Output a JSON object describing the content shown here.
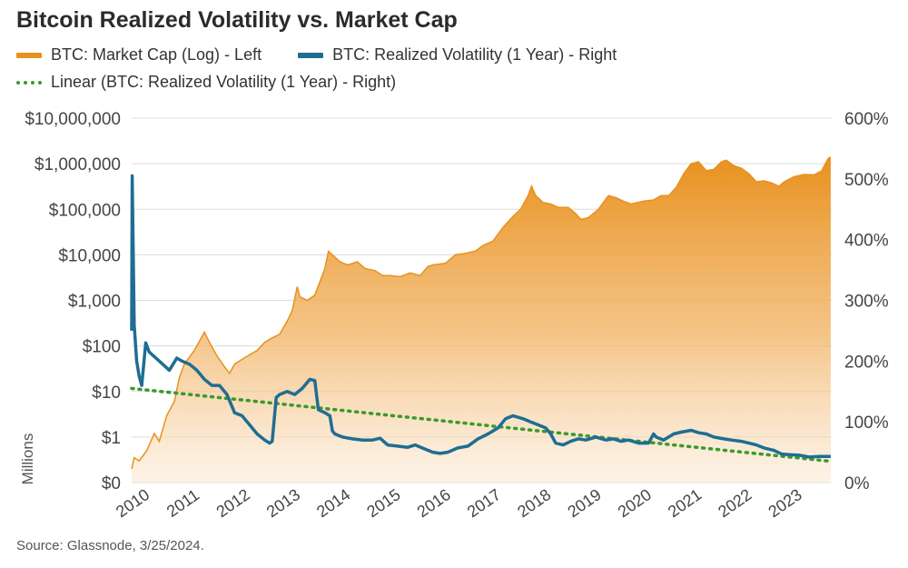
{
  "chart_data": {
    "type": "line",
    "title": "Bitcoin Realized Volatility vs. Market Cap",
    "ylabel_left": "Millions",
    "colors": {
      "market_cap": "#e8911e",
      "volatility": "#1f6d93",
      "trend": "#3a9a2a"
    },
    "y_left": {
      "scale": "log",
      "range": [
        0.1,
        10000000
      ],
      "tick_values": [
        0.1,
        1,
        10,
        100,
        1000,
        10000,
        100000,
        1000000,
        10000000
      ],
      "tick_labels": [
        "$0",
        "$1",
        "$10",
        "$100",
        "$1,000",
        "$10,000",
        "$100,000",
        "$1,000,000",
        "$10,000,000"
      ]
    },
    "y_right": {
      "scale": "linear",
      "range": [
        0,
        600
      ],
      "tick_values": [
        0,
        100,
        200,
        300,
        400,
        500,
        600
      ],
      "tick_labels": [
        "0%",
        "100%",
        "200%",
        "300%",
        "400%",
        "500%",
        "600%"
      ]
    },
    "x_axis": {
      "range": [
        2010.0,
        2023.95
      ],
      "tick_values": [
        2010,
        2011,
        2012,
        2013,
        2014,
        2015,
        2016,
        2017,
        2018,
        2019,
        2020,
        2021,
        2022,
        2023
      ],
      "tick_labels": [
        "2010",
        "2011",
        "2012",
        "2013",
        "2014",
        "2015",
        "2016",
        "2017",
        "2018",
        "2019",
        "2020",
        "2021",
        "2022",
        "2023"
      ]
    },
    "grid": true,
    "series": [
      {
        "name": "BTC: Market Cap (Log) - Left",
        "axis": "left",
        "style": "area",
        "points": [
          [
            2010.0,
            0.2
          ],
          [
            2010.05,
            0.35
          ],
          [
            2010.15,
            0.3
          ],
          [
            2010.3,
            0.5
          ],
          [
            2010.45,
            1.2
          ],
          [
            2010.55,
            0.8
          ],
          [
            2010.7,
            3
          ],
          [
            2010.85,
            6
          ],
          [
            2010.95,
            20
          ],
          [
            2011.05,
            40
          ],
          [
            2011.25,
            80
          ],
          [
            2011.45,
            200
          ],
          [
            2011.55,
            120
          ],
          [
            2011.7,
            60
          ],
          [
            2011.85,
            35
          ],
          [
            2011.95,
            25
          ],
          [
            2012.05,
            40
          ],
          [
            2012.25,
            55
          ],
          [
            2012.5,
            80
          ],
          [
            2012.65,
            120
          ],
          [
            2012.8,
            150
          ],
          [
            2012.95,
            180
          ],
          [
            2013.1,
            350
          ],
          [
            2013.2,
            600
          ],
          [
            2013.3,
            2000
          ],
          [
            2013.35,
            1200
          ],
          [
            2013.5,
            1000
          ],
          [
            2013.65,
            1300
          ],
          [
            2013.85,
            5000
          ],
          [
            2013.92,
            12000
          ],
          [
            2014.0,
            10000
          ],
          [
            2014.15,
            7000
          ],
          [
            2014.3,
            6000
          ],
          [
            2014.5,
            7000
          ],
          [
            2014.65,
            5000
          ],
          [
            2014.85,
            4500
          ],
          [
            2015.0,
            3500
          ],
          [
            2015.15,
            3500
          ],
          [
            2015.35,
            3300
          ],
          [
            2015.55,
            4000
          ],
          [
            2015.75,
            3500
          ],
          [
            2015.9,
            5500
          ],
          [
            2016.0,
            6000
          ],
          [
            2016.25,
            6500
          ],
          [
            2016.45,
            10000
          ],
          [
            2016.6,
            10500
          ],
          [
            2016.85,
            12000
          ],
          [
            2017.0,
            16000
          ],
          [
            2017.2,
            20000
          ],
          [
            2017.4,
            40000
          ],
          [
            2017.6,
            70000
          ],
          [
            2017.75,
            100000
          ],
          [
            2017.9,
            200000
          ],
          [
            2017.97,
            320000
          ],
          [
            2018.05,
            200000
          ],
          [
            2018.2,
            140000
          ],
          [
            2018.35,
            130000
          ],
          [
            2018.5,
            110000
          ],
          [
            2018.7,
            110000
          ],
          [
            2018.85,
            80000
          ],
          [
            2018.95,
            60000
          ],
          [
            2019.1,
            65000
          ],
          [
            2019.3,
            100000
          ],
          [
            2019.5,
            200000
          ],
          [
            2019.65,
            180000
          ],
          [
            2019.8,
            150000
          ],
          [
            2019.95,
            130000
          ],
          [
            2020.2,
            150000
          ],
          [
            2020.4,
            160000
          ],
          [
            2020.55,
            200000
          ],
          [
            2020.7,
            200000
          ],
          [
            2020.85,
            300000
          ],
          [
            2021.0,
            600000
          ],
          [
            2021.15,
            1000000
          ],
          [
            2021.3,
            1100000
          ],
          [
            2021.45,
            700000
          ],
          [
            2021.6,
            750000
          ],
          [
            2021.75,
            1100000
          ],
          [
            2021.85,
            1200000
          ],
          [
            2022.0,
            900000
          ],
          [
            2022.15,
            800000
          ],
          [
            2022.3,
            600000
          ],
          [
            2022.45,
            400000
          ],
          [
            2022.6,
            420000
          ],
          [
            2022.75,
            380000
          ],
          [
            2022.9,
            320000
          ],
          [
            2023.0,
            400000
          ],
          [
            2023.2,
            520000
          ],
          [
            2023.4,
            580000
          ],
          [
            2023.6,
            570000
          ],
          [
            2023.75,
            700000
          ],
          [
            2023.88,
            1300000
          ],
          [
            2023.93,
            1400000
          ]
        ]
      },
      {
        "name": "BTC: Realized Volatility (1 Year) - Right",
        "axis": "right",
        "style": "line",
        "points": [
          [
            2010.0,
            250
          ],
          [
            2010.01,
            505
          ],
          [
            2010.03,
            380
          ],
          [
            2010.05,
            260
          ],
          [
            2010.1,
            200
          ],
          [
            2010.15,
            175
          ],
          [
            2010.2,
            160
          ],
          [
            2010.28,
            230
          ],
          [
            2010.35,
            215
          ],
          [
            2010.55,
            200
          ],
          [
            2010.75,
            185
          ],
          [
            2010.9,
            205
          ],
          [
            2011.0,
            200
          ],
          [
            2011.15,
            195
          ],
          [
            2011.3,
            185
          ],
          [
            2011.45,
            170
          ],
          [
            2011.6,
            160
          ],
          [
            2011.75,
            160
          ],
          [
            2011.9,
            145
          ],
          [
            2012.05,
            115
          ],
          [
            2012.2,
            110
          ],
          [
            2012.35,
            95
          ],
          [
            2012.5,
            80
          ],
          [
            2012.65,
            70
          ],
          [
            2012.75,
            65
          ],
          [
            2012.8,
            68
          ],
          [
            2012.88,
            140
          ],
          [
            2012.95,
            145
          ],
          [
            2013.1,
            150
          ],
          [
            2013.25,
            145
          ],
          [
            2013.4,
            155
          ],
          [
            2013.55,
            170
          ],
          [
            2013.65,
            168
          ],
          [
            2013.72,
            120
          ],
          [
            2013.85,
            115
          ],
          [
            2013.95,
            110
          ],
          [
            2014.0,
            85
          ],
          [
            2014.05,
            80
          ],
          [
            2014.2,
            75
          ],
          [
            2014.4,
            72
          ],
          [
            2014.6,
            70
          ],
          [
            2014.8,
            70
          ],
          [
            2014.95,
            73
          ],
          [
            2015.1,
            62
          ],
          [
            2015.3,
            60
          ],
          [
            2015.5,
            58
          ],
          [
            2015.65,
            62
          ],
          [
            2015.85,
            55
          ],
          [
            2016.0,
            50
          ],
          [
            2016.15,
            48
          ],
          [
            2016.3,
            50
          ],
          [
            2016.5,
            57
          ],
          [
            2016.7,
            60
          ],
          [
            2016.9,
            72
          ],
          [
            2017.1,
            80
          ],
          [
            2017.3,
            90
          ],
          [
            2017.45,
            105
          ],
          [
            2017.6,
            110
          ],
          [
            2017.8,
            105
          ],
          [
            2017.95,
            100
          ],
          [
            2018.1,
            95
          ],
          [
            2018.25,
            90
          ],
          [
            2018.35,
            80
          ],
          [
            2018.45,
            65
          ],
          [
            2018.6,
            62
          ],
          [
            2018.75,
            68
          ],
          [
            2018.9,
            72
          ],
          [
            2019.05,
            70
          ],
          [
            2019.25,
            75
          ],
          [
            2019.45,
            70
          ],
          [
            2019.6,
            72
          ],
          [
            2019.75,
            68
          ],
          [
            2019.9,
            70
          ],
          [
            2020.1,
            65
          ],
          [
            2020.3,
            65
          ],
          [
            2020.4,
            80
          ],
          [
            2020.45,
            75
          ],
          [
            2020.6,
            70
          ],
          [
            2020.8,
            80
          ],
          [
            2020.95,
            83
          ],
          [
            2021.15,
            86
          ],
          [
            2021.3,
            82
          ],
          [
            2021.45,
            80
          ],
          [
            2021.6,
            75
          ],
          [
            2021.8,
            72
          ],
          [
            2021.95,
            70
          ],
          [
            2022.15,
            68
          ],
          [
            2022.3,
            65
          ],
          [
            2022.45,
            62
          ],
          [
            2022.6,
            57
          ],
          [
            2022.8,
            53
          ],
          [
            2022.95,
            47
          ],
          [
            2023.1,
            46
          ],
          [
            2023.3,
            45
          ],
          [
            2023.5,
            42
          ],
          [
            2023.7,
            43
          ],
          [
            2023.93,
            43
          ]
        ]
      },
      {
        "name": "Linear (BTC: Realized Volatility (1 Year) - Right)",
        "axis": "right",
        "style": "dotted",
        "points": [
          [
            2010.0,
            155
          ],
          [
            2023.93,
            35
          ]
        ]
      }
    ],
    "legend_position": "top-left"
  },
  "legend": {
    "item1": "BTC: Market Cap (Log) - Left",
    "item2": "BTC: Realized Volatility (1 Year) - Right",
    "item3": "Linear (BTC: Realized Volatility (1 Year) - Right)"
  },
  "source": "Source: Glassnode, 3/25/2024."
}
